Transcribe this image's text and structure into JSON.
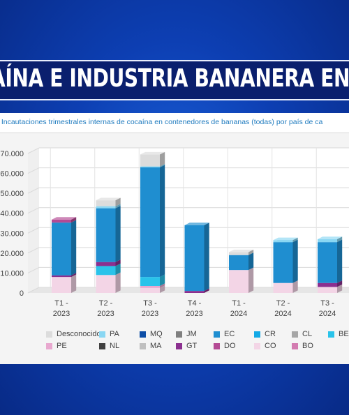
{
  "headline": "AÍNA E INDUSTRIA BANANERA EN ECUA",
  "chart_data": {
    "type": "bar",
    "stacked": true,
    "title": ". Incautaciones trimestrales internas de cocaína en contenedores de bananas (todas) por país de ca",
    "categories": [
      [
        "T1 -",
        "2023"
      ],
      [
        "T2 -",
        "2023"
      ],
      [
        "T3 -",
        "2023"
      ],
      [
        "T4 -",
        "2023"
      ],
      [
        "T1 -",
        "2024"
      ],
      [
        "T2 -",
        "2024"
      ],
      [
        "T3 -",
        "2024"
      ]
    ],
    "yticks": [
      "0",
      "10.000",
      "20.000",
      "30.000",
      "40.000",
      "50.000",
      "60.000",
      "70.000"
    ],
    "ylim": [
      0,
      70000
    ],
    "grid": true,
    "legend_position": "bottom",
    "series": [
      {
        "name": "CO",
        "color": "#f3d5e6",
        "values": [
          8000,
          9000,
          2500,
          0,
          11500,
          5000,
          3000
        ]
      },
      {
        "name": "PE",
        "color": "#e8a8cf",
        "values": [
          0,
          0,
          1000,
          0,
          0,
          0,
          0
        ]
      },
      {
        "name": "BE",
        "color": "#29c3ea",
        "values": [
          0,
          4500,
          4500,
          0,
          0,
          0,
          0
        ]
      },
      {
        "name": "GT",
        "color": "#8b2f8f",
        "values": [
          800,
          2000,
          0,
          1000,
          0,
          0,
          2000
        ]
      },
      {
        "name": "EC",
        "color": "#1f8ed0",
        "values": [
          26500,
          27000,
          55000,
          33000,
          7500,
          20500,
          20500
        ]
      },
      {
        "name": "MQ",
        "color": "#0d4ea6",
        "values": [
          0,
          0,
          0,
          0,
          0,
          0,
          0
        ]
      },
      {
        "name": "DO",
        "color": "#b44a94",
        "values": [
          1500,
          0,
          0,
          0,
          0,
          0,
          0
        ]
      },
      {
        "name": "PA",
        "color": "#8ad7f3",
        "values": [
          0,
          1000,
          500,
          0,
          0,
          1000,
          1500
        ]
      },
      {
        "name": "Desconocido",
        "color": "#dcdcdc",
        "values": [
          0,
          3000,
          6000,
          0,
          1500,
          0,
          0
        ]
      }
    ]
  },
  "legend": [
    {
      "label": "Desconocido",
      "color": "#dcdcdc"
    },
    {
      "label": "PA",
      "color": "#8ad7f3"
    },
    {
      "label": "MQ",
      "color": "#0d4ea6"
    },
    {
      "label": "JM",
      "color": "#7f7f7f"
    },
    {
      "label": "EC",
      "color": "#1f8ed0"
    },
    {
      "label": "CR",
      "color": "#13a9e6"
    },
    {
      "label": "CL",
      "color": "#a6a6a6"
    },
    {
      "label": "BE",
      "color": "#29c3ea"
    },
    {
      "label": "PE",
      "color": "#e8a8cf"
    },
    {
      "label": "NL",
      "color": "#404040"
    },
    {
      "label": "MA",
      "color": "#bfbfbf"
    },
    {
      "label": "GT",
      "color": "#8b2f8f"
    },
    {
      "label": "DO",
      "color": "#b44a94"
    },
    {
      "label": "CO",
      "color": "#f3d5e6"
    },
    {
      "label": "BO",
      "color": "#d37cb0"
    }
  ]
}
